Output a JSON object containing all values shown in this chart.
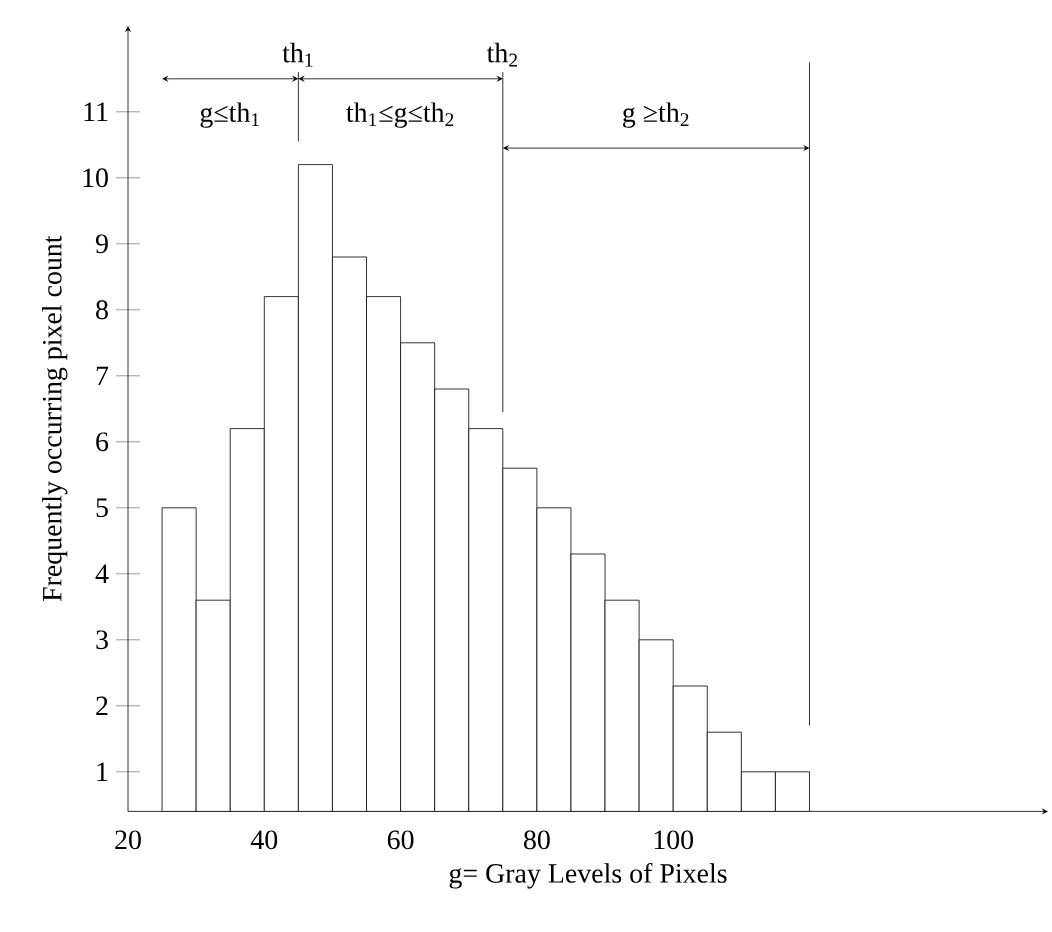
{
  "chart_data": {
    "type": "histogram",
    "xlabel": "g= Gray Levels of Pixels",
    "ylabel": "Frequently occurring pixel count",
    "bins": [
      25,
      30,
      35,
      40,
      45,
      50,
      55,
      60,
      65,
      70,
      75,
      80,
      85,
      90,
      95,
      100,
      105,
      110,
      115,
      120
    ],
    "values": [
      5,
      3.6,
      6.2,
      8.2,
      10.2,
      8.8,
      8.2,
      7.5,
      6.8,
      6.2,
      5.6,
      5,
      4.3,
      3.6,
      3,
      2.3,
      1.6,
      1,
      1
    ],
    "color": "#ffffff",
    "xlim": [
      20,
      155
    ],
    "ylim": [
      0.4,
      12.3
    ],
    "xticks": [
      20,
      40,
      60,
      80,
      100
    ],
    "yticks": [
      1,
      2,
      3,
      4,
      5,
      6,
      7,
      8,
      9,
      10,
      11
    ],
    "ref_lines": [
      {
        "axis": "x",
        "value": 45,
        "label": "th$_{1}$"
      },
      {
        "axis": "x",
        "value": 75,
        "label": "th$_{2}$"
      },
      {
        "axis": "x",
        "value": 120
      }
    ],
    "annotations": [
      "g≤th$_{1}$",
      "th$_{1}$≤g≤th$_{2}$",
      "g ≥th$_{2}$"
    ]
  }
}
